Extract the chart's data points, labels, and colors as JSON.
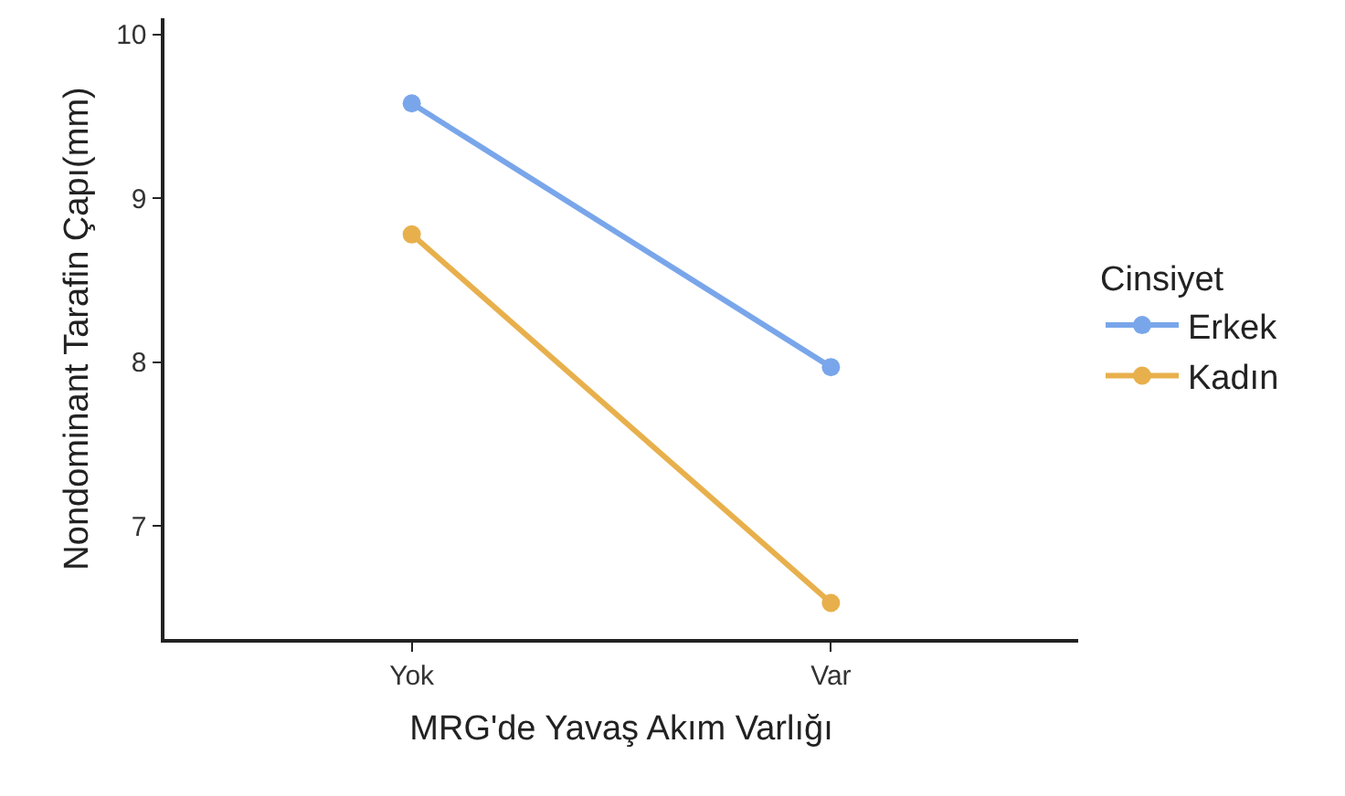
{
  "chart_data": {
    "type": "line",
    "xlabel": "MRG'de Yavaş Akım Varlığı",
    "ylabel": "Nondominant Tarafin Çapı(mm)",
    "legend_title": "Cinsiyet",
    "categories": [
      "Yok",
      "Var"
    ],
    "series": [
      {
        "name": "Erkek",
        "color": "#79a6ea",
        "values": [
          9.58,
          7.97
        ]
      },
      {
        "name": "Kadın",
        "color": "#e8b04c",
        "values": [
          8.78,
          6.53
        ]
      }
    ],
    "ylim": [
      6.31,
      10.1
    ],
    "yticks": [
      7,
      8,
      9,
      10
    ],
    "grid": false,
    "legend": "right",
    "marker": "circle",
    "line_style": "solid"
  }
}
